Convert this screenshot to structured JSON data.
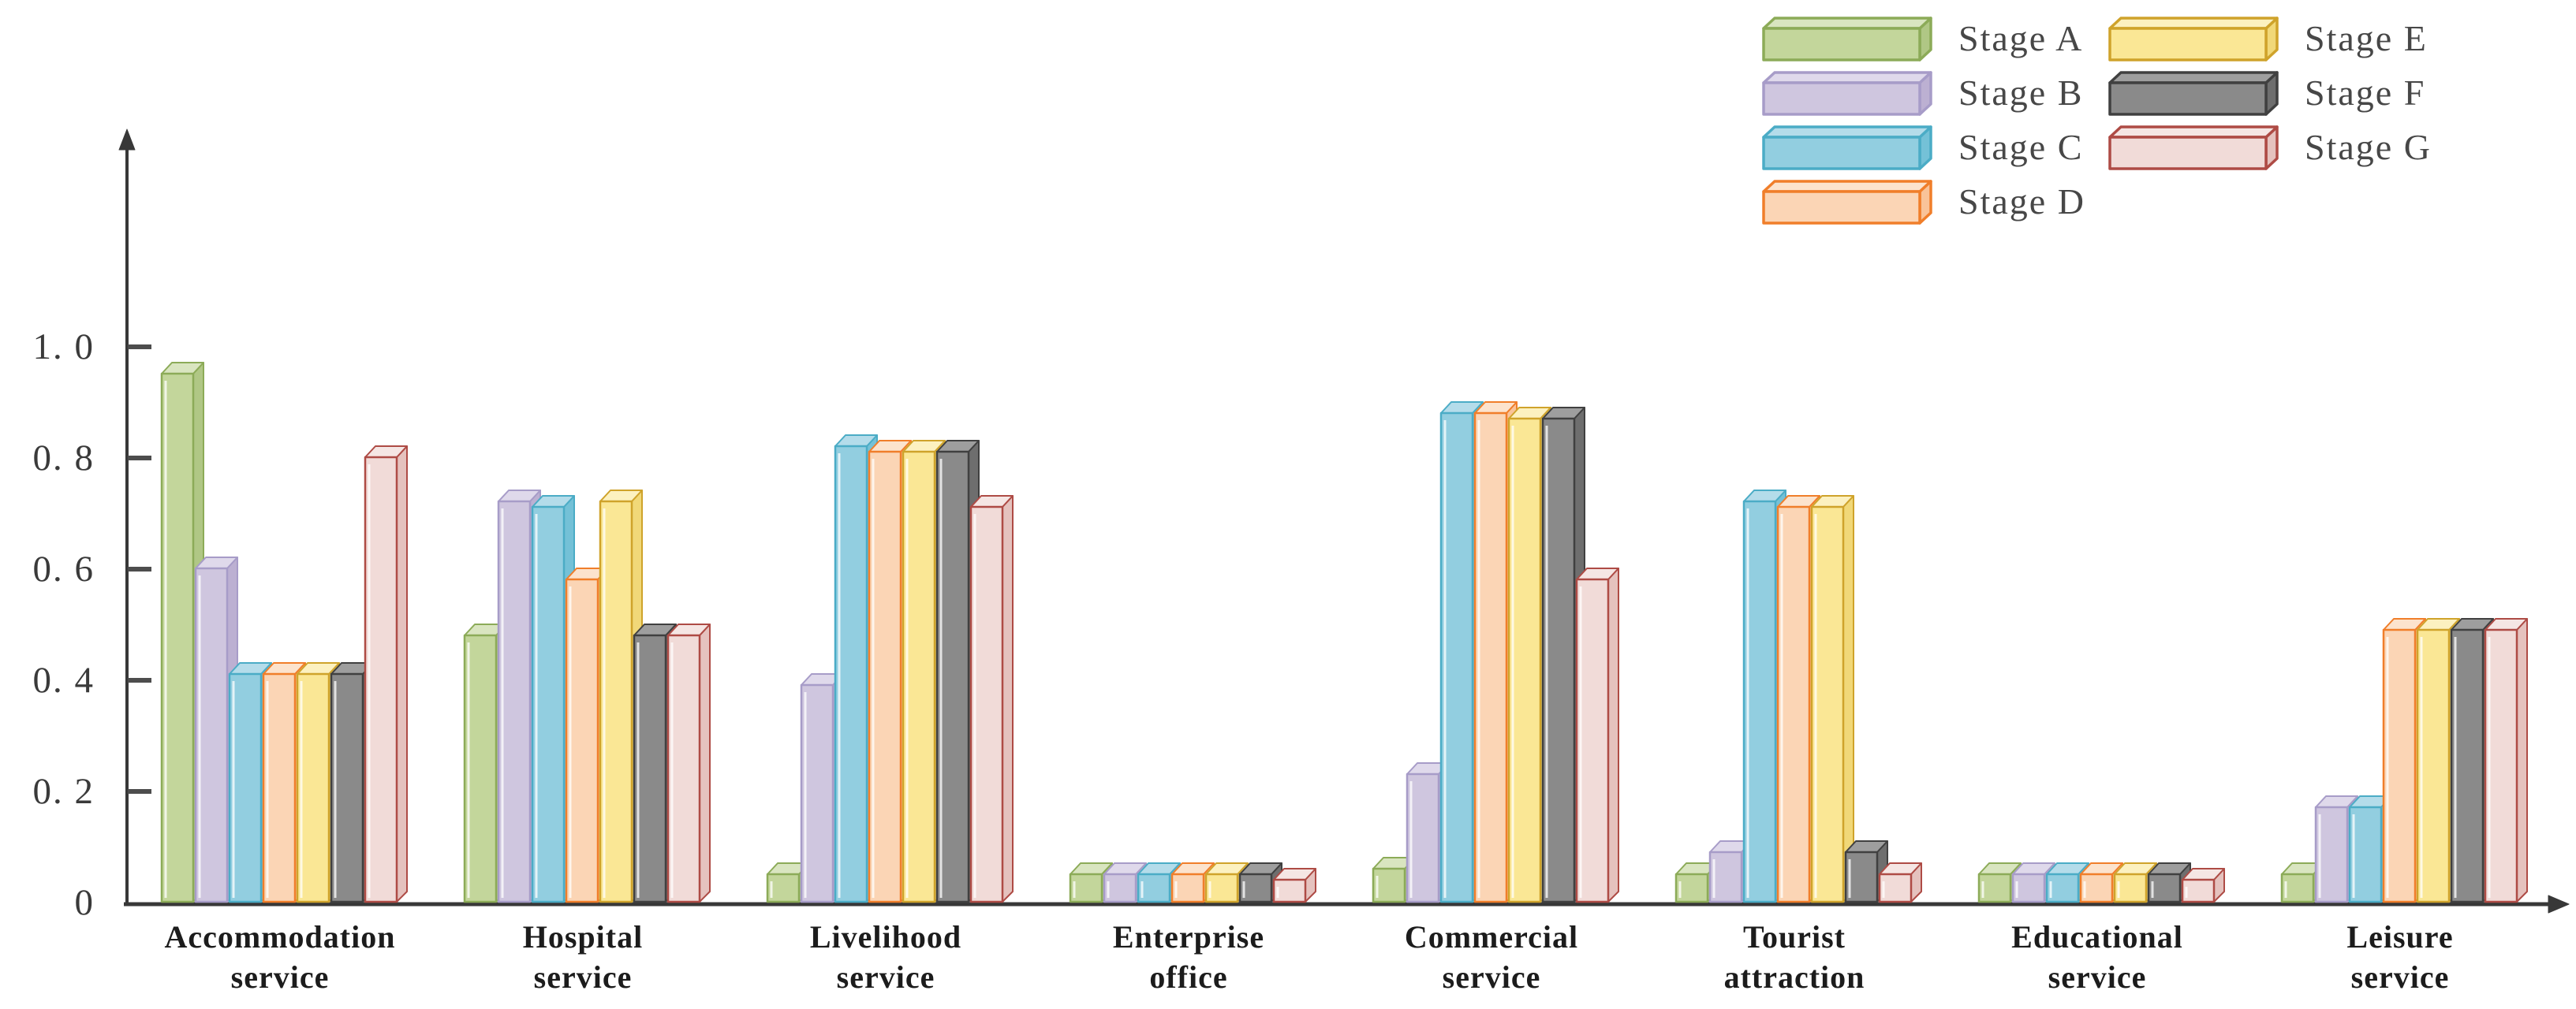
{
  "figure": {
    "background": "#ffffff",
    "axis_color": "#383838"
  },
  "chart_data": {
    "type": "bar",
    "title": "",
    "xlabel": "",
    "ylabel": "",
    "ylim": [
      0,
      1.0
    ],
    "grid": false,
    "legend_position": "top-right",
    "yticks": [
      {
        "label": "1. 0",
        "value": 1.0
      },
      {
        "label": "0. 8",
        "value": 0.8
      },
      {
        "label": "0. 6",
        "value": 0.6
      },
      {
        "label": "0. 4",
        "value": 0.4
      },
      {
        "label": "0. 2",
        "value": 0.2
      },
      {
        "label": "0",
        "value": 0.0
      }
    ],
    "categories": [
      "Accommodation\nservice",
      "Hospital\nservice",
      "Livelihood\nservice",
      "Enterprise\noffice",
      "Commercial\nservice",
      "Tourist\nattraction",
      "Educational\nservice",
      "Leisure\nservice"
    ],
    "series": [
      {
        "name": "Stage A",
        "values": [
          0.95,
          0.48,
          0.05,
          0.05,
          0.06,
          0.05,
          0.05,
          0.05
        ],
        "edge": "#8cab58",
        "face": "#c3d69b",
        "top": "#d9e5c0",
        "side": "#b0c785"
      },
      {
        "name": "Stage B",
        "values": [
          0.6,
          0.72,
          0.39,
          0.05,
          0.23,
          0.09,
          0.05,
          0.17
        ],
        "edge": "#a79cc8",
        "face": "#cfc6df",
        "top": "#dfd9eb",
        "side": "#bcb0d2"
      },
      {
        "name": "Stage C",
        "values": [
          0.41,
          0.71,
          0.82,
          0.05,
          0.88,
          0.72,
          0.05,
          0.17
        ],
        "edge": "#4bacc6",
        "face": "#92cee0",
        "top": "#b4dcea",
        "side": "#74c1d7"
      },
      {
        "name": "Stage D",
        "values": [
          0.41,
          0.58,
          0.81,
          0.05,
          0.88,
          0.71,
          0.05,
          0.49
        ],
        "edge": "#f07e2a",
        "face": "#fbd5b5",
        "top": "#fce3cd",
        "side": "#f9c399"
      },
      {
        "name": "Stage E",
        "values": [
          0.41,
          0.72,
          0.81,
          0.05,
          0.87,
          0.71,
          0.05,
          0.49
        ],
        "edge": "#cfa32b",
        "face": "#fae795",
        "top": "#fcf1c0",
        "side": "#f1d878"
      },
      {
        "name": "Stage F",
        "values": [
          0.41,
          0.48,
          0.81,
          0.05,
          0.87,
          0.09,
          0.05,
          0.49
        ],
        "edge": "#404040",
        "face": "#8a8a8a",
        "top": "#9e9e9e",
        "side": "#6e6e6e"
      },
      {
        "name": "Stage G",
        "values": [
          0.8,
          0.48,
          0.71,
          0.04,
          0.58,
          0.05,
          0.04,
          0.49
        ],
        "edge": "#ae4b45",
        "face": "#f1dbd8",
        "top": "#f5e6e4",
        "side": "#e5c2be"
      }
    ]
  },
  "legend": {
    "items": [
      "Stage A",
      "Stage B",
      "Stage C",
      "Stage D",
      "Stage E",
      "Stage F",
      "Stage G"
    ]
  }
}
